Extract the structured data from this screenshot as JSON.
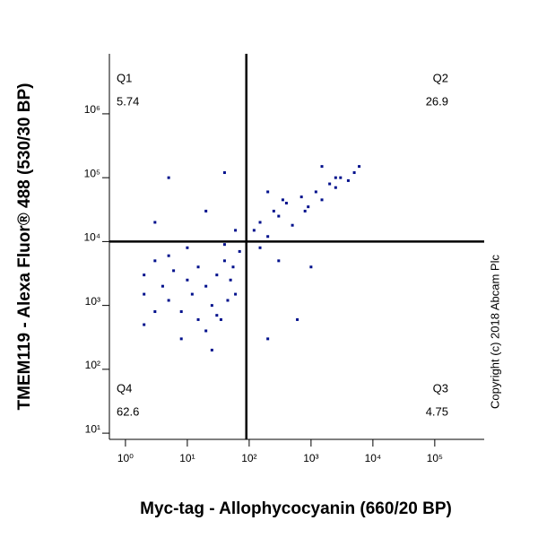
{
  "chart_data": {
    "type": "scatter",
    "x_label": "Myc-tag - Allophycocyanin (660/20 BP)",
    "y_label": "TMEM119 - Alexa Fluor® 488 (530/30 BP)",
    "copyright": "Copyright (c) 2018 Abcam Plc",
    "log_x": true,
    "log_y": true,
    "xlim": [
      0.55,
      630000
    ],
    "ylim": [
      8,
      8700000
    ],
    "xticks": [
      {
        "value": 1,
        "label": "10⁰"
      },
      {
        "value": 10,
        "label": "10¹"
      },
      {
        "value": 100,
        "label": "10²"
      },
      {
        "value": 1000,
        "label": "10³"
      },
      {
        "value": 10000,
        "label": "10⁴"
      },
      {
        "value": 100000,
        "label": "10⁵"
      }
    ],
    "yticks": [
      {
        "value": 10,
        "label": "10¹"
      },
      {
        "value": 100,
        "label": "10²"
      },
      {
        "value": 1000,
        "label": "10³"
      },
      {
        "value": 10000,
        "label": "10⁴"
      },
      {
        "value": 100000,
        "label": "10⁵"
      },
      {
        "value": 1000000,
        "label": "10⁶"
      }
    ],
    "gate_x": 90,
    "gate_y": 10000,
    "quadrants": [
      {
        "name": "Q1",
        "value": 5.74
      },
      {
        "name": "Q2",
        "value": 26.9
      },
      {
        "name": "Q3",
        "value": 4.75
      },
      {
        "name": "Q4",
        "value": 62.6
      }
    ],
    "color": "#00108c",
    "x": [
      2,
      2,
      2,
      3,
      3,
      4,
      5,
      5,
      6,
      8,
      10,
      12,
      15,
      20,
      25,
      30,
      40,
      50,
      60,
      70,
      15,
      20,
      30,
      40,
      8,
      10,
      25,
      35,
      45,
      55,
      120,
      150,
      200,
      250,
      300,
      400,
      500,
      700,
      900,
      1200,
      1500,
      2000,
      2500,
      3000,
      4000,
      5000,
      6000,
      200,
      350,
      800,
      1500,
      2500,
      3,
      20,
      60,
      150,
      300,
      1000,
      5,
      40,
      200,
      600
    ],
    "y": [
      500,
      1500,
      3000,
      800,
      5000,
      2000,
      1200,
      6000,
      3500,
      800,
      2500,
      1500,
      4000,
      2000,
      1000,
      3000,
      5000,
      2500,
      1500,
      7000,
      600,
      400,
      700,
      9000,
      300,
      8000,
      200,
      600,
      1200,
      4000,
      15000,
      20000,
      12000,
      30000,
      25000,
      40000,
      18000,
      50000,
      35000,
      60000,
      45000,
      80000,
      70000,
      100000,
      90000,
      120000,
      150000,
      60000,
      45000,
      30000,
      150000,
      100000,
      20000,
      30000,
      15000,
      8000,
      5000,
      4000,
      100000,
      120000,
      300,
      600
    ]
  }
}
